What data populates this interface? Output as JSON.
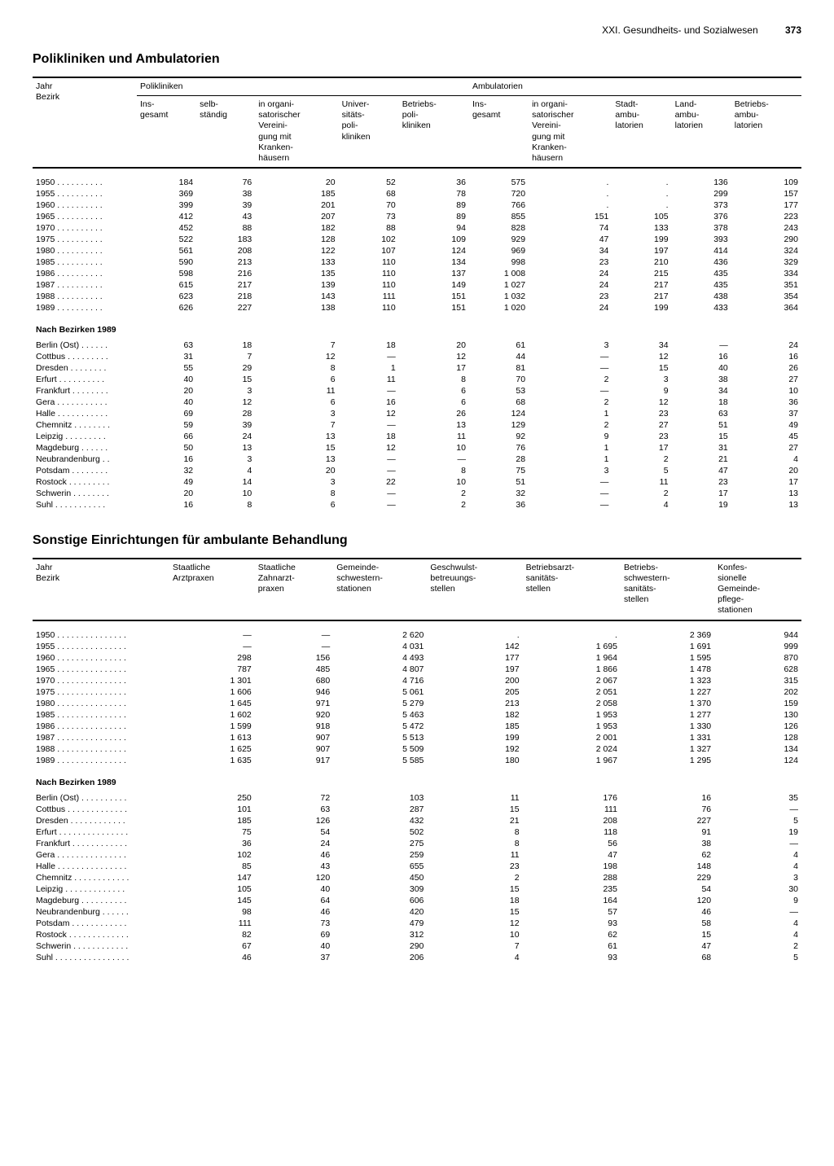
{
  "page": {
    "chapter": "XXI. Gesundheits- und Sozialwesen",
    "number": "373"
  },
  "table1": {
    "title": "Polikliniken und Ambulatorien",
    "row_header_lines": [
      "Jahr",
      "Bezirk"
    ],
    "group_headers": [
      "Polikliniken",
      "Ambulatorien"
    ],
    "col_headers_poli": [
      "Ins-\ngesamt",
      "selb-\nständig",
      "in organi-\nsatorischer\nVereini-\ngung mit\nKranken-\nhäusern",
      "Univer-\nsitäts-\npoli-\nkliniken",
      "Betriebs-\npoli-\nkliniken"
    ],
    "col_headers_ambu": [
      "Ins-\ngesamt",
      "in organi-\nsatorischer\nVereini-\ngung mit\nKranken-\nhäusern",
      "Stadt-\nambu-\nlatorien",
      "Land-\nambu-\nlatorien",
      "Betriebs-\nambu-\nlatorien"
    ],
    "years_label_suffix": " . . . . . . . . . .",
    "bezirk_label_suffix_long": " . . . . . . . . .",
    "rows_years": [
      {
        "label": "1950",
        "v": [
          "184",
          "76",
          "20",
          "52",
          "36",
          "575",
          ".",
          ".",
          "136",
          "109"
        ]
      },
      {
        "label": "1955",
        "v": [
          "369",
          "38",
          "185",
          "68",
          "78",
          "720",
          ".",
          ".",
          "299",
          "157"
        ]
      },
      {
        "label": "1960",
        "v": [
          "399",
          "39",
          "201",
          "70",
          "89",
          "766",
          ".",
          ".",
          "373",
          "177"
        ]
      },
      {
        "label": "1965",
        "v": [
          "412",
          "43",
          "207",
          "73",
          "89",
          "855",
          "151",
          "105",
          "376",
          "223"
        ]
      },
      {
        "label": "1970",
        "v": [
          "452",
          "88",
          "182",
          "88",
          "94",
          "828",
          "74",
          "133",
          "378",
          "243"
        ]
      },
      {
        "label": "1975",
        "v": [
          "522",
          "183",
          "128",
          "102",
          "109",
          "929",
          "47",
          "199",
          "393",
          "290"
        ]
      },
      {
        "label": "1980",
        "v": [
          "561",
          "208",
          "122",
          "107",
          "124",
          "969",
          "34",
          "197",
          "414",
          "324"
        ]
      },
      {
        "label": "1985",
        "v": [
          "590",
          "213",
          "133",
          "110",
          "134",
          "998",
          "23",
          "210",
          "436",
          "329"
        ]
      },
      {
        "label": "1986",
        "v": [
          "598",
          "216",
          "135",
          "110",
          "137",
          "1 008",
          "24",
          "215",
          "435",
          "334"
        ]
      },
      {
        "label": "1987",
        "v": [
          "615",
          "217",
          "139",
          "110",
          "149",
          "1 027",
          "24",
          "217",
          "435",
          "351"
        ]
      },
      {
        "label": "1988",
        "v": [
          "623",
          "218",
          "143",
          "111",
          "151",
          "1 032",
          "23",
          "217",
          "438",
          "354"
        ]
      },
      {
        "label": "1989",
        "v": [
          "626",
          "227",
          "138",
          "110",
          "151",
          "1 020",
          "24",
          "199",
          "433",
          "364"
        ]
      }
    ],
    "bezirk_header": "Nach Bezirken 1989",
    "rows_bezirk": [
      {
        "label": "Berlin (Ost) . . . . . .",
        "v": [
          "63",
          "18",
          "7",
          "18",
          "20",
          "61",
          "3",
          "34",
          "—",
          "24"
        ]
      },
      {
        "label": "Cottbus . . . . . . . . .",
        "v": [
          "31",
          "7",
          "12",
          "—",
          "12",
          "44",
          "—",
          "12",
          "16",
          "16"
        ]
      },
      {
        "label": "Dresden . . . . . . . .",
        "v": [
          "55",
          "29",
          "8",
          "1",
          "17",
          "81",
          "—",
          "15",
          "40",
          "26"
        ]
      },
      {
        "label": "Erfurt . . . . . . . . . .",
        "v": [
          "40",
          "15",
          "6",
          "11",
          "8",
          "70",
          "2",
          "3",
          "38",
          "27"
        ]
      },
      {
        "label": "Frankfurt . . . . . . . .",
        "v": [
          "20",
          "3",
          "11",
          "—",
          "6",
          "53",
          "—",
          "9",
          "34",
          "10"
        ]
      },
      {
        "label": "Gera . . . . . . . . . . .",
        "v": [
          "40",
          "12",
          "6",
          "16",
          "6",
          "68",
          "2",
          "12",
          "18",
          "36"
        ]
      },
      {
        "label": "Halle . . . . . . . . . . .",
        "v": [
          "69",
          "28",
          "3",
          "12",
          "26",
          "124",
          "1",
          "23",
          "63",
          "37"
        ]
      },
      {
        "label": "Chemnitz . . . . . . . .",
        "v": [
          "59",
          "39",
          "7",
          "—",
          "13",
          "129",
          "2",
          "27",
          "51",
          "49"
        ]
      },
      {
        "label": "Leipzig . . . . . . . . .",
        "v": [
          "66",
          "24",
          "13",
          "18",
          "11",
          "92",
          "9",
          "23",
          "15",
          "45"
        ]
      },
      {
        "label": "Magdeburg . . . . . .",
        "v": [
          "50",
          "13",
          "15",
          "12",
          "10",
          "76",
          "1",
          "17",
          "31",
          "27"
        ]
      },
      {
        "label": "Neubrandenburg . .",
        "v": [
          "16",
          "3",
          "13",
          "—",
          "—",
          "28",
          "1",
          "2",
          "21",
          "4"
        ]
      },
      {
        "label": "Potsdam . . . . . . . .",
        "v": [
          "32",
          "4",
          "20",
          "—",
          "8",
          "75",
          "3",
          "5",
          "47",
          "20"
        ]
      },
      {
        "label": "Rostock . . . . . . . . .",
        "v": [
          "49",
          "14",
          "3",
          "22",
          "10",
          "51",
          "—",
          "11",
          "23",
          "17"
        ]
      },
      {
        "label": "Schwerin . . . . . . . .",
        "v": [
          "20",
          "10",
          "8",
          "—",
          "2",
          "32",
          "—",
          "2",
          "17",
          "13"
        ]
      },
      {
        "label": "Suhl . . . . . . . . . . .",
        "v": [
          "16",
          "8",
          "6",
          "—",
          "2",
          "36",
          "—",
          "4",
          "19",
          "13"
        ]
      }
    ]
  },
  "table2": {
    "title": "Sonstige Einrichtungen für ambulante Behandlung",
    "row_header_lines": [
      "Jahr",
      "Bezirk"
    ],
    "col_headers": [
      "Staatliche\nArztpraxen",
      "Staatliche\nZahnarzt-\npraxen",
      "Gemeinde-\nschwestern-\nstationen",
      "Geschwulst-\nbetreuungs-\nstellen",
      "Betriebsarzt-\nsanitäts-\nstellen",
      "Betriebs-\nschwestern-\nsanitäts-\nstellen",
      "Konfes-\nsionelle\nGemeinde-\npflege-\nstationen"
    ],
    "rows_years": [
      {
        "label": "1950",
        "v": [
          "—",
          "—",
          "2 620",
          ".",
          ".",
          "2 369",
          "944"
        ]
      },
      {
        "label": "1955",
        "v": [
          "—",
          "—",
          "4 031",
          "142",
          "1 695",
          "1 691",
          "999"
        ]
      },
      {
        "label": "1960",
        "v": [
          "298",
          "156",
          "4 493",
          "177",
          "1 964",
          "1 595",
          "870"
        ]
      },
      {
        "label": "1965",
        "v": [
          "787",
          "485",
          "4 807",
          "197",
          "1 866",
          "1 478",
          "628"
        ]
      },
      {
        "label": "1970",
        "v": [
          "1 301",
          "680",
          "4 716",
          "200",
          "2 067",
          "1 323",
          "315"
        ]
      },
      {
        "label": "1975",
        "v": [
          "1 606",
          "946",
          "5 061",
          "205",
          "2 051",
          "1 227",
          "202"
        ]
      },
      {
        "label": "1980",
        "v": [
          "1 645",
          "971",
          "5 279",
          "213",
          "2 058",
          "1 370",
          "159"
        ]
      },
      {
        "label": "1985",
        "v": [
          "1 602",
          "920",
          "5 463",
          "182",
          "1 953",
          "1 277",
          "130"
        ]
      },
      {
        "label": "1986",
        "v": [
          "1 599",
          "918",
          "5 472",
          "185",
          "1 953",
          "1 330",
          "126"
        ]
      },
      {
        "label": "1987",
        "v": [
          "1 613",
          "907",
          "5 513",
          "199",
          "2 001",
          "1 331",
          "128"
        ]
      },
      {
        "label": "1988",
        "v": [
          "1 625",
          "907",
          "5 509",
          "192",
          "2 024",
          "1 327",
          "134"
        ]
      },
      {
        "label": "1989",
        "v": [
          "1 635",
          "917",
          "5 585",
          "180",
          "1 967",
          "1 295",
          "124"
        ]
      }
    ],
    "bezirk_header": "Nach Bezirken 1989",
    "rows_bezirk": [
      {
        "label": "Berlin (Ost) . . . . . . . . . .",
        "v": [
          "250",
          "72",
          "103",
          "11",
          "176",
          "16",
          "35"
        ]
      },
      {
        "label": "Cottbus . . . . . . . . . . . . .",
        "v": [
          "101",
          "63",
          "287",
          "15",
          "111",
          "76",
          "—"
        ]
      },
      {
        "label": "Dresden . . . . . . . . . . . .",
        "v": [
          "185",
          "126",
          "432",
          "21",
          "208",
          "227",
          "5"
        ]
      },
      {
        "label": "Erfurt . . . . . . . . . . . . . . .",
        "v": [
          "75",
          "54",
          "502",
          "8",
          "118",
          "91",
          "19"
        ]
      },
      {
        "label": "Frankfurt . . . . . . . . . . . .",
        "v": [
          "36",
          "24",
          "275",
          "8",
          "56",
          "38",
          "—"
        ]
      },
      {
        "label": "Gera . . . . . . . . . . . . . . .",
        "v": [
          "102",
          "46",
          "259",
          "11",
          "47",
          "62",
          "4"
        ]
      },
      {
        "label": "Halle . . . . . . . . . . . . . . .",
        "v": [
          "85",
          "43",
          "655",
          "23",
          "198",
          "148",
          "4"
        ]
      },
      {
        "label": "Chemnitz . . . . . . . . . . . .",
        "v": [
          "147",
          "120",
          "450",
          "2",
          "288",
          "229",
          "3"
        ]
      },
      {
        "label": "Leipzig . . . . . . . . . . . . .",
        "v": [
          "105",
          "40",
          "309",
          "15",
          "235",
          "54",
          "30"
        ]
      },
      {
        "label": "Magdeburg . . . . . . . . . .",
        "v": [
          "145",
          "64",
          "606",
          "18",
          "164",
          "120",
          "9"
        ]
      },
      {
        "label": "Neubrandenburg . . . . . .",
        "v": [
          "98",
          "46",
          "420",
          "15",
          "57",
          "46",
          "—"
        ]
      },
      {
        "label": "Potsdam . . . . . . . . . . . .",
        "v": [
          "111",
          "73",
          "479",
          "12",
          "93",
          "58",
          "4"
        ]
      },
      {
        "label": "Rostock . . . . . . . . . . . . .",
        "v": [
          "82",
          "69",
          "312",
          "10",
          "62",
          "15",
          "4"
        ]
      },
      {
        "label": "Schwerin . . . . . . . . . . . .",
        "v": [
          "67",
          "40",
          "290",
          "7",
          "61",
          "47",
          "2"
        ]
      },
      {
        "label": "Suhl . . . . . . . . . . . . . . . .",
        "v": [
          "46",
          "37",
          "206",
          "4",
          "93",
          "68",
          "5"
        ]
      }
    ]
  }
}
